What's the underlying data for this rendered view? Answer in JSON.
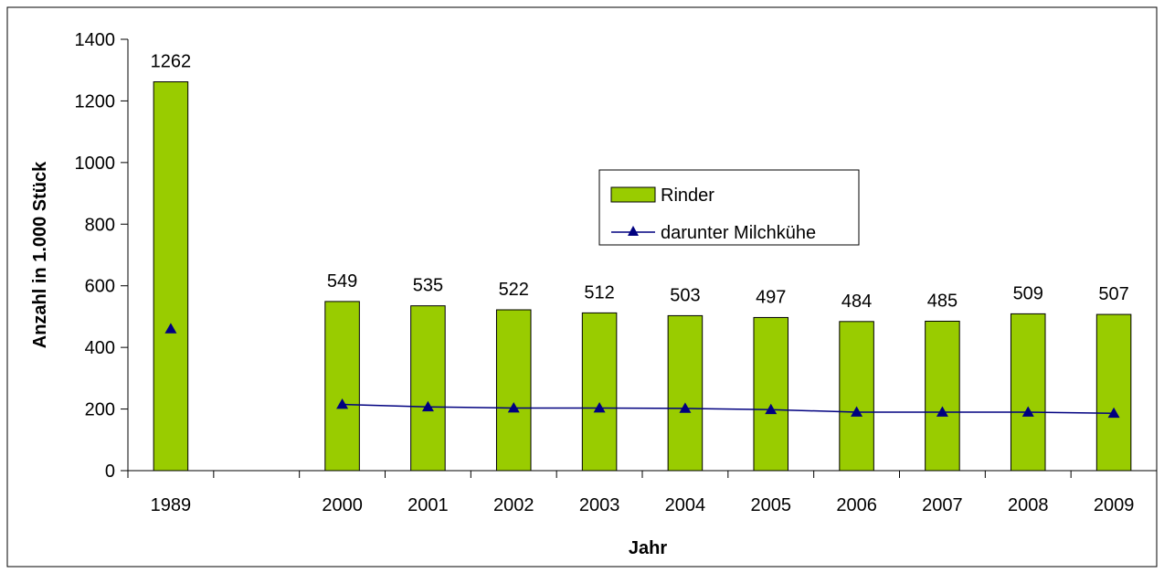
{
  "chart_data": {
    "type": "bar",
    "title": "",
    "xlabel": "Jahr",
    "ylabel": "Anzahl in 1.000 Stück",
    "ylim": [
      0,
      1400
    ],
    "yticks": [
      0,
      200,
      400,
      600,
      800,
      1000,
      1200,
      1400
    ],
    "categories": [
      "1989",
      "",
      "2000",
      "2001",
      "2002",
      "2003",
      "2004",
      "2005",
      "2006",
      "2007",
      "2008",
      "2009"
    ],
    "series": [
      {
        "name": "Rinder",
        "type": "bar",
        "color": "#99cc00",
        "values": [
          1262,
          null,
          549,
          535,
          522,
          512,
          503,
          497,
          484,
          485,
          509,
          507
        ],
        "labels": [
          "1262",
          "",
          "549",
          "535",
          "522",
          "512",
          "503",
          "497",
          "484",
          "485",
          "509",
          "507"
        ]
      },
      {
        "name": "darunter Milchkühe",
        "type": "line",
        "color": "#000080",
        "marker": "triangle",
        "values": [
          460,
          null,
          215,
          207,
          203,
          203,
          202,
          198,
          190,
          190,
          190,
          186
        ]
      }
    ],
    "legend": "right-center",
    "grid": false
  }
}
